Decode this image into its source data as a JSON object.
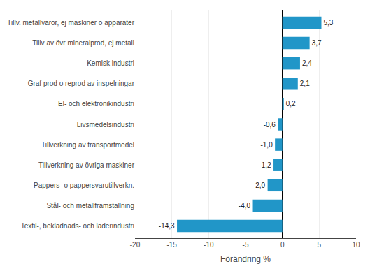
{
  "chart_data": {
    "type": "bar",
    "orientation": "horizontal",
    "categories": [
      "Textil-, beklädnads- och läderindustri",
      "Stål- och metallframställning",
      "Pappers- o pappersvarutillverkn.",
      "Tillverkning av övriga maskiner",
      "Tillverkning av transportmedel",
      "Livsmedelsindustri",
      "El- och elektronikindustri",
      "Graf prod o reprod av inspelningar",
      "Kemisk industri",
      "Tillv av övr mineralprod, ej metall",
      "Tillv. metallvaror, ej maskiner o apparater"
    ],
    "values": [
      -14.3,
      -4.0,
      -2.0,
      -1.2,
      -1.0,
      -0.6,
      0.2,
      2.1,
      2.4,
      3.7,
      5.3
    ],
    "value_labels": [
      "-14,3",
      "-4,0",
      "-2,0",
      "-1,2",
      "-1,0",
      "-0,6",
      "0,2",
      "2,1",
      "2,4",
      "3,7",
      "5,3"
    ],
    "color": "#2196c8",
    "xlabel": "Förändring %",
    "xlim": [
      -20,
      10
    ],
    "xticks": [
      -20,
      -15,
      -10,
      -5,
      0,
      5,
      10
    ],
    "grid": true,
    "data_labels": true
  }
}
